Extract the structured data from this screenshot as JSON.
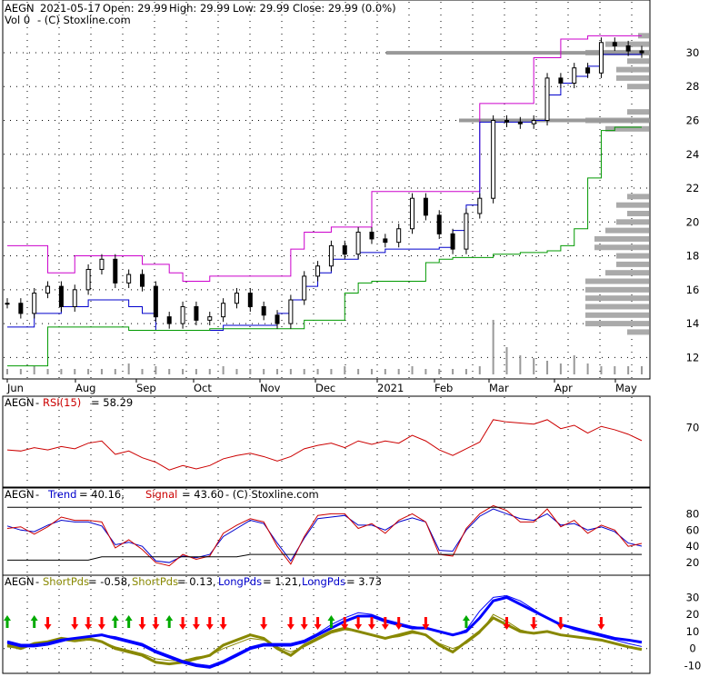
{
  "header": {
    "ticker": "AEGN",
    "date": "2021-05-17",
    "open": "Open: 29.99",
    "high": "High: 29.99",
    "low": "Low: 29.99",
    "close": "Close: 29.99 (0.0%)",
    "vol": "Vol 0",
    "credit": "-  (C) Stoxline.com"
  },
  "x_labels": [
    "Jun",
    "Aug",
    "Sep",
    "Oct",
    "Nov",
    "Dec",
    "2021",
    "Feb",
    "Mar",
    "Apr",
    "May"
  ],
  "rsi_panel": {
    "ticker": "AEGN",
    "label": "RSI(15)",
    "value": "= 58.29",
    "ticks": [
      "70"
    ]
  },
  "trend_panel": {
    "ticker": "AEGN",
    "trend_label": "Trend",
    "trend_value": "= 40.16,",
    "signal_label": "Signal",
    "signal_value": "= 43.60",
    "credit": "-  (C) Stoxline.com",
    "ticks": [
      "80",
      "60",
      "40",
      "20"
    ]
  },
  "pds_panel": {
    "ticker": "AEGN",
    "s1_label": "ShortPds",
    "s1_value": "= -0.58,",
    "s2_label": "ShortPds",
    "s2_value": "= 0.13,",
    "l1_label": "LongPds",
    "l1_value": "= 1.21,",
    "l2_label": "LongPds",
    "l2_value": "= 3.73",
    "ticks": [
      "30",
      "20",
      "10",
      "0",
      "-10"
    ]
  },
  "colors": {
    "up": "#00aa00",
    "down": "#ff0000",
    "rsi": "#cc0000",
    "trend": "#0000cc",
    "signal": "#cc0000",
    "short": "#888800",
    "long": "#0000ff",
    "upper_band": "#cc00cc",
    "lower_band": "#0000cc",
    "stop": "#009900",
    "resistance": "#cc0000"
  },
  "chart_data": [
    {
      "type": "candlestick",
      "title": "AEGN  2021-05-17 Open: 29.99  High: 29.99  Low: 29.99  Close: 29.99 (0.0%)",
      "x_ticks": [
        "Jun",
        "Aug",
        "Sep",
        "Oct",
        "Nov",
        "Dec",
        "2021",
        "Feb",
        "Mar",
        "Apr",
        "May"
      ],
      "y_ticks": [
        12,
        14,
        16,
        18,
        20,
        22,
        24,
        26,
        28,
        30
      ],
      "ylim": [
        11,
        31.5
      ],
      "close": [
        15.2,
        14.6,
        15.8,
        16.2,
        15.0,
        16.0,
        17.2,
        17.8,
        16.4,
        16.9,
        16.2,
        14.4,
        14.0,
        15.0,
        14.2,
        14.4,
        15.2,
        15.8,
        15.0,
        14.5,
        14.0,
        15.4,
        16.8,
        17.4,
        18.6,
        18.1,
        19.4,
        19.0,
        18.8,
        19.6,
        21.4,
        20.4,
        19.3,
        18.4,
        20.5,
        21.4,
        26.0,
        25.9,
        25.8,
        26.0,
        28.5,
        28.2,
        29.1,
        28.8,
        30.6,
        30.4,
        30.1,
        29.99
      ],
      "volume": [
        0.1,
        0.1,
        0.15,
        0.1,
        0.1,
        0.1,
        0.1,
        0.1,
        0.1,
        0.2,
        0.1,
        0.15,
        0.1,
        0.1,
        0.1,
        0.1,
        0.15,
        0.1,
        0.1,
        0.1,
        0.1,
        0.1,
        0.1,
        0.1,
        0.1,
        0.15,
        0.1,
        0.1,
        0.1,
        0.1,
        0.15,
        0.1,
        0.1,
        0.1,
        0.1,
        0.15,
        1.0,
        0.5,
        0.35,
        0.3,
        0.25,
        0.2,
        0.35,
        0.2,
        0.15,
        0.15,
        0.15,
        0.15
      ],
      "upper_band": [
        18.6,
        18.6,
        18.6,
        17.0,
        17.0,
        18.0,
        18.0,
        18.0,
        18.0,
        18.0,
        17.5,
        17.5,
        17.0,
        16.5,
        16.5,
        16.8,
        16.8,
        16.8,
        16.8,
        16.8,
        16.8,
        18.4,
        19.4,
        19.4,
        19.7,
        19.7,
        19.7,
        21.8,
        21.8,
        21.8,
        21.8,
        21.8,
        21.8,
        21.8,
        21.8,
        27.0,
        27.0,
        27.0,
        27.0,
        29.7,
        29.7,
        30.8,
        30.8,
        31.0,
        31.0,
        31.0,
        31.0,
        31.0
      ],
      "lower_band": [
        13.8,
        13.8,
        14.6,
        14.6,
        15.0,
        15.0,
        15.4,
        15.4,
        15.4,
        15.0,
        14.6,
        13.6,
        13.6,
        13.6,
        13.6,
        13.6,
        13.9,
        13.9,
        13.9,
        13.9,
        14.6,
        15.4,
        16.2,
        17.0,
        17.8,
        17.8,
        18.2,
        18.2,
        18.4,
        18.4,
        18.4,
        18.4,
        18.5,
        19.5,
        21.0,
        25.9,
        25.9,
        25.9,
        25.9,
        26.0,
        27.5,
        28.2,
        28.6,
        29.2,
        29.9,
        29.9,
        29.9,
        29.9
      ],
      "stop_line": [
        11.5,
        11.5,
        11.5,
        13.8,
        13.8,
        13.8,
        13.8,
        13.8,
        13.8,
        13.6,
        13.6,
        13.6,
        13.6,
        13.6,
        13.6,
        13.7,
        13.7,
        13.7,
        13.7,
        13.7,
        13.7,
        13.7,
        14.2,
        14.2,
        14.2,
        15.8,
        16.4,
        16.5,
        16.5,
        16.5,
        16.5,
        17.6,
        17.8,
        17.9,
        17.9,
        17.9,
        18.1,
        18.1,
        18.2,
        18.2,
        18.3,
        18.6,
        19.6,
        22.6,
        25.4,
        25.6,
        25.6,
        25.6
      ]
    },
    {
      "type": "line",
      "title": "AEGN - RSI(15) = 58.29",
      "y_ticks": [
        70
      ],
      "ylim": [
        20,
        85
      ],
      "series": [
        {
          "name": "RSI(15)",
          "values": [
            50,
            49,
            52,
            50,
            53,
            51,
            56,
            58,
            46,
            49,
            43,
            39,
            32,
            36,
            33,
            36,
            42,
            45,
            47,
            44,
            40,
            44,
            51,
            54,
            56,
            52,
            58,
            55,
            58,
            56,
            63,
            58,
            50,
            45,
            51,
            57,
            77,
            75,
            74,
            73,
            77,
            69,
            72,
            65,
            71,
            68,
            64,
            58.29
          ]
        }
      ]
    },
    {
      "type": "line",
      "title": "AEGN - Trend = 40.16, Signal = 43.60 - (C) Stoxline.com",
      "y_ticks": [
        20,
        40,
        60,
        80
      ],
      "ylim": [
        10,
        95
      ],
      "series": [
        {
          "name": "Trend",
          "values": [
            65,
            60,
            58,
            66,
            72,
            70,
            70,
            65,
            42,
            45,
            40,
            22,
            20,
            28,
            26,
            30,
            52,
            62,
            72,
            68,
            44,
            22,
            50,
            74,
            76,
            78,
            66,
            66,
            60,
            70,
            75,
            70,
            35,
            34,
            60,
            77,
            86,
            80,
            74,
            72,
            80,
            66,
            68,
            60,
            64,
            58,
            44,
            40.16
          ]
        },
        {
          "name": "Signal",
          "values": [
            62,
            64,
            55,
            64,
            76,
            72,
            72,
            70,
            38,
            48,
            36,
            20,
            16,
            30,
            24,
            28,
            56,
            66,
            74,
            70,
            40,
            18,
            52,
            78,
            80,
            80,
            62,
            68,
            56,
            72,
            80,
            70,
            30,
            28,
            62,
            80,
            90,
            84,
            70,
            70,
            86,
            64,
            72,
            56,
            66,
            60,
            40,
            43.6
          ]
        },
        {
          "name": "",
          "values": [
            23,
            23,
            23,
            23,
            23,
            23,
            23,
            27,
            27,
            27,
            27,
            27,
            27,
            27,
            27,
            27,
            27,
            27,
            30,
            30,
            30,
            30,
            30,
            30,
            30,
            30,
            30,
            30,
            30,
            30,
            30,
            30,
            30,
            30,
            30,
            30,
            30,
            30,
            30,
            30,
            30,
            30,
            30,
            30,
            30,
            30,
            30,
            30
          ]
        },
        {
          "name": "",
          "values": [
            88,
            88,
            88,
            88,
            88,
            88,
            88,
            88,
            88,
            88,
            88,
            88,
            88,
            88,
            88,
            88,
            88,
            88,
            88,
            88,
            88,
            88,
            88,
            88,
            88,
            88,
            88,
            88,
            88,
            88,
            88,
            88,
            88,
            88,
            88,
            88,
            88,
            88,
            88,
            88,
            88,
            88,
            88,
            88,
            88,
            88,
            88,
            88
          ]
        }
      ]
    },
    {
      "type": "line",
      "title": "AEGN - ShortPds = -0.58, ShortPds = 0.13, LongPds = 1.21, LongPds = 3.73",
      "y_ticks": [
        -10,
        0,
        10,
        20,
        30
      ],
      "ylim": [
        -14,
        35
      ],
      "series": [
        {
          "name": "ShortPds",
          "values": [
            2,
            0,
            3,
            4,
            6,
            5,
            6,
            4,
            0,
            -2,
            -4,
            -8,
            -9,
            -8,
            -6,
            -4,
            2,
            5,
            8,
            6,
            0,
            -4,
            2,
            6,
            10,
            12,
            10,
            8,
            6,
            8,
            10,
            8,
            2,
            -2,
            4,
            10,
            18,
            14,
            10,
            9,
            10,
            8,
            7,
            6,
            5,
            3,
            1,
            -0.58
          ]
        },
        {
          "name": "ShortPds",
          "values": [
            1,
            0,
            2,
            3,
            5,
            4,
            5,
            4,
            1,
            -1,
            -3,
            -6,
            -7,
            -7,
            -5,
            -4,
            0,
            3,
            6,
            5,
            1,
            -2,
            1,
            5,
            9,
            11,
            10,
            8,
            6,
            7,
            9,
            8,
            3,
            0,
            3,
            9,
            20,
            16,
            11,
            9,
            10,
            8,
            7,
            6,
            5,
            3,
            1,
            0.13
          ]
        },
        {
          "name": "LongPds",
          "values": [
            4,
            2,
            2,
            3,
            5,
            6,
            7,
            8,
            6,
            4,
            2,
            -2,
            -5,
            -8,
            -10,
            -11,
            -8,
            -4,
            0,
            2,
            2,
            2,
            4,
            8,
            12,
            16,
            19,
            19,
            16,
            14,
            12,
            12,
            10,
            8,
            10,
            18,
            28,
            30,
            26,
            22,
            18,
            14,
            12,
            10,
            8,
            6,
            5,
            3.73
          ]
        },
        {
          "name": "LongPds",
          "values": [
            3,
            1,
            1,
            2,
            4,
            6,
            7,
            8,
            7,
            5,
            3,
            -1,
            -4,
            -7,
            -9,
            -10,
            -7,
            -3,
            1,
            3,
            3,
            3,
            5,
            9,
            14,
            18,
            21,
            20,
            17,
            15,
            13,
            12,
            10,
            8,
            11,
            22,
            30,
            31,
            28,
            23,
            18,
            14,
            11,
            9,
            7,
            5,
            3,
            1.21
          ]
        }
      ],
      "up_arrows_at": [
        0,
        2,
        8,
        9,
        12,
        24,
        34
      ],
      "down_arrows_at": [
        3,
        5,
        6,
        7,
        10,
        11,
        13,
        14,
        15,
        16,
        19,
        21,
        22,
        23,
        25,
        26,
        27,
        28,
        29,
        31,
        37,
        39,
        41,
        44
      ]
    }
  ]
}
